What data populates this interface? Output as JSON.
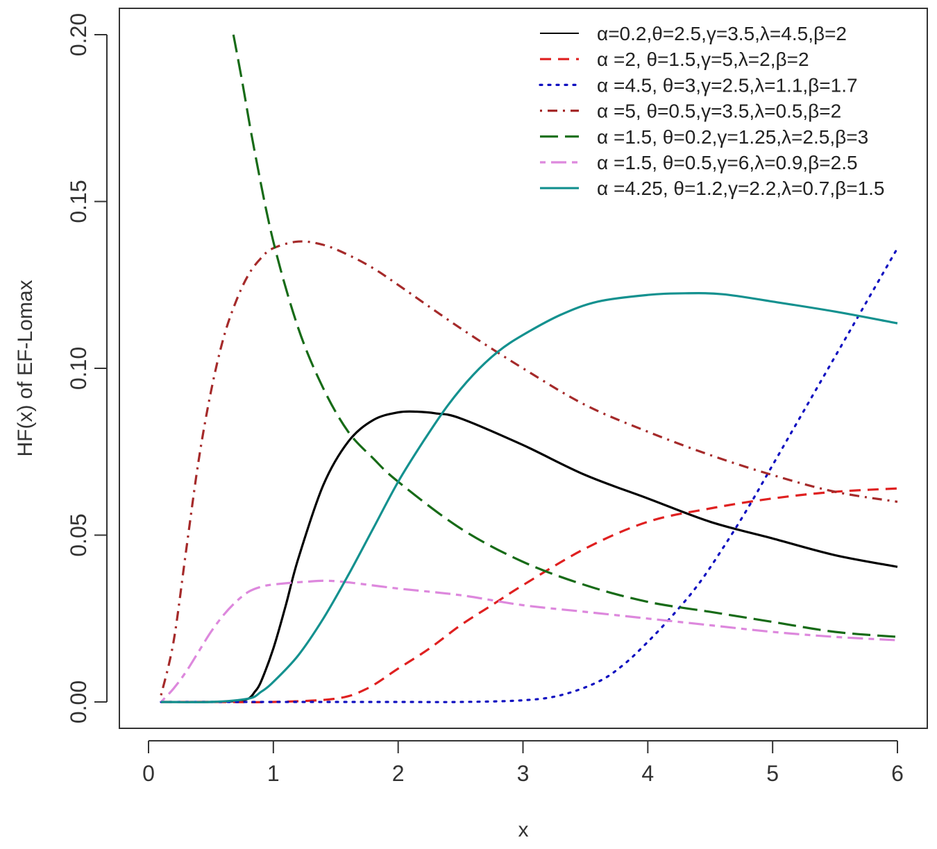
{
  "chart_data": {
    "type": "line",
    "title": "",
    "xlabel": "x",
    "ylabel": "HF(x) of EF-Lomax",
    "xlim": [
      0,
      6
    ],
    "ylim": [
      0,
      0.2
    ],
    "x_ticks": [
      0,
      1,
      2,
      3,
      4,
      5,
      6
    ],
    "x_tick_labels": [
      "0",
      "1",
      "2",
      "3",
      "4",
      "5",
      "6"
    ],
    "y_ticks": [
      0,
      0.05,
      0.1,
      0.15,
      0.2
    ],
    "y_tick_labels": [
      "0.00",
      "0.05",
      "0.10",
      "0.15",
      "0.20"
    ],
    "grid": false,
    "legend_position": "top-right",
    "series": [
      {
        "name": "α=0.2,θ=2.5,γ=3.5,λ=4.5,β=2",
        "color": "#000000",
        "dash": "solid",
        "x": [
          0.1,
          0.5,
          0.7,
          0.8,
          0.85,
          0.9,
          1.0,
          1.1,
          1.2,
          1.4,
          1.6,
          1.8,
          2.0,
          2.15,
          2.3,
          2.5,
          3.0,
          3.5,
          4.0,
          4.5,
          5.0,
          5.5,
          6.0
        ],
        "y": [
          0,
          0,
          0.0003,
          0.001,
          0.003,
          0.006,
          0.016,
          0.029,
          0.043,
          0.065,
          0.078,
          0.0845,
          0.0868,
          0.087,
          0.0865,
          0.085,
          0.077,
          0.068,
          0.061,
          0.054,
          0.049,
          0.044,
          0.0405
        ]
      },
      {
        "name": "α =2, θ=1.5,γ=5,λ=2,β=2",
        "color": "#df2020",
        "dash": "dashed",
        "x": [
          0.1,
          0.5,
          1.0,
          1.5,
          1.75,
          2.0,
          2.25,
          2.5,
          2.75,
          3.0,
          3.5,
          4.0,
          4.5,
          5.0,
          5.5,
          6.0
        ],
        "y": [
          0,
          0,
          0,
          0.001,
          0.004,
          0.01,
          0.016,
          0.023,
          0.029,
          0.035,
          0.046,
          0.054,
          0.058,
          0.061,
          0.063,
          0.064
        ]
      },
      {
        "name": "α =4.5, θ=3,γ=2.5,λ=1.1,β=1.7",
        "color": "#1010c0",
        "dash": "dotted",
        "x": [
          0.1,
          1.0,
          2.0,
          2.5,
          3.0,
          3.3,
          3.6,
          3.8,
          4.0,
          4.2,
          4.4,
          4.6,
          4.8,
          5.0,
          5.2,
          5.4,
          5.6,
          5.8,
          6.0
        ],
        "y": [
          0,
          0,
          0,
          0,
          0.0005,
          0.002,
          0.006,
          0.011,
          0.018,
          0.026,
          0.035,
          0.046,
          0.058,
          0.071,
          0.084,
          0.097,
          0.11,
          0.123,
          0.136
        ]
      },
      {
        "name": "α =5, θ=0.5,γ=3.5,λ=0.5,β=2",
        "color": "#a52a2a",
        "dash": "dotdash",
        "x": [
          0.1,
          0.2,
          0.3,
          0.4,
          0.5,
          0.6,
          0.7,
          0.8,
          0.9,
          1.0,
          1.2,
          1.4,
          1.6,
          1.8,
          2.0,
          2.5,
          3.0,
          3.5,
          4.0,
          4.5,
          5.0,
          5.5,
          6.0
        ],
        "y": [
          0.002,
          0.018,
          0.045,
          0.072,
          0.093,
          0.109,
          0.12,
          0.128,
          0.133,
          0.136,
          0.138,
          0.137,
          0.134,
          0.13,
          0.125,
          0.112,
          0.1,
          0.089,
          0.081,
          0.074,
          0.068,
          0.063,
          0.06
        ]
      },
      {
        "name": "α =1.5, θ=0.2,γ=1.25,λ=2.5,β=3",
        "color": "#176b17",
        "dash": "longdash",
        "x": [
          0.68,
          0.75,
          0.85,
          1.0,
          1.2,
          1.4,
          1.6,
          1.8,
          2.0,
          2.5,
          3.0,
          3.5,
          4.0,
          4.5,
          5.0,
          5.5,
          6.0
        ],
        "y": [
          0.2,
          0.186,
          0.165,
          0.138,
          0.112,
          0.094,
          0.081,
          0.073,
          0.066,
          0.052,
          0.042,
          0.035,
          0.03,
          0.027,
          0.024,
          0.021,
          0.0195
        ]
      },
      {
        "name": "α =1.5, θ=0.5,γ=6,λ=0.9,β=2.5",
        "color": "#dd88dd",
        "dash": "twodash",
        "x": [
          0.1,
          0.2,
          0.3,
          0.4,
          0.5,
          0.6,
          0.7,
          0.8,
          0.9,
          1.0,
          1.25,
          1.5,
          2.0,
          2.5,
          3.0,
          3.5,
          4.0,
          4.5,
          5.0,
          5.5,
          6.0
        ],
        "y": [
          0,
          0.004,
          0.009,
          0.015,
          0.021,
          0.026,
          0.03,
          0.033,
          0.0345,
          0.0352,
          0.036,
          0.0362,
          0.034,
          0.032,
          0.029,
          0.027,
          0.025,
          0.023,
          0.021,
          0.0195,
          0.0185
        ]
      },
      {
        "name": "α =4.25, θ=1.2,γ=2.2,λ=0.7,β=1.5",
        "color": "#14918f",
        "dash": "solid",
        "x": [
          0.1,
          0.5,
          0.8,
          0.9,
          1.0,
          1.2,
          1.4,
          1.6,
          1.8,
          2.0,
          2.2,
          2.4,
          2.6,
          2.8,
          3.0,
          3.3,
          3.6,
          4.0,
          4.3,
          4.6,
          5.0,
          5.5,
          6.0
        ],
        "y": [
          0,
          0,
          0.001,
          0.003,
          0.006,
          0.014,
          0.025,
          0.038,
          0.052,
          0.066,
          0.078,
          0.089,
          0.098,
          0.105,
          0.11,
          0.116,
          0.12,
          0.122,
          0.1225,
          0.1222,
          0.12,
          0.117,
          0.1135
        ]
      }
    ]
  }
}
